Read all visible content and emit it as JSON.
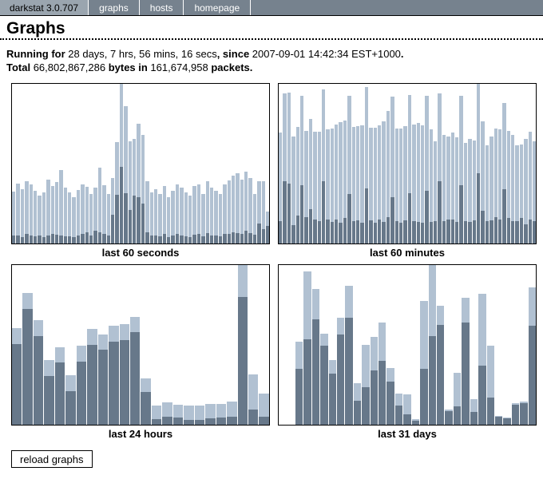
{
  "nav": {
    "brand": "darkstat 3.0.707",
    "items": [
      {
        "label": "graphs"
      },
      {
        "label": "hosts"
      },
      {
        "label": "homepage"
      }
    ]
  },
  "page": {
    "title": "Graphs"
  },
  "info": {
    "line1": [
      {
        "text": "Running for",
        "bold": true
      },
      {
        "text": " 28 days, 7 hrs, 56 mins, 16 secs",
        "bold": false
      },
      {
        "text": ", since",
        "bold": true
      },
      {
        "text": " 2007-09-01 14:42:34 EST+1000",
        "bold": false
      },
      {
        "text": ".",
        "bold": true
      }
    ],
    "line2": [
      {
        "text": "Total",
        "bold": true
      },
      {
        "text": " 66,802,867,286 ",
        "bold": false
      },
      {
        "text": "bytes in",
        "bold": true
      },
      {
        "text": " 161,674,958 ",
        "bold": false
      },
      {
        "text": "packets.",
        "bold": true
      }
    ]
  },
  "colors": {
    "page_bg": "#ffffff",
    "nav_bg": "#76828e",
    "nav_brand_bg": "#9aa5af",
    "nav_text": "#ffffff",
    "bar_light": "#b1c1d2",
    "bar_dark": "#67788a",
    "border": "#000000"
  },
  "footer": {
    "reload_button": "reload graphs"
  },
  "chart_data": [
    {
      "type": "bar",
      "title": "last 60 seconds",
      "stacked": true,
      "xlabel": "",
      "ylabel": "",
      "ylim": [
        0,
        200
      ],
      "grid": false,
      "legend": "none",
      "note": "values are stacked bar heights in plot pixels (plot height = 200); 'total' = full bar (light+dark), 'dark' = bottom dark segment",
      "series": [
        {
          "name": "total",
          "values": [
            65,
            75,
            68,
            78,
            74,
            66,
            60,
            64,
            80,
            72,
            77,
            92,
            70,
            64,
            58,
            67,
            74,
            71,
            62,
            70,
            95,
            73,
            62,
            82,
            127,
            200,
            172,
            128,
            131,
            150,
            136,
            78,
            64,
            68,
            62,
            72,
            58,
            66,
            74,
            70,
            64,
            60,
            72,
            74,
            62,
            78,
            70,
            66,
            62,
            74,
            79,
            85,
            88,
            80,
            90,
            82,
            62,
            78,
            78,
            40
          ]
        },
        {
          "name": "dark",
          "values": [
            10,
            10,
            8,
            12,
            10,
            9,
            10,
            8,
            10,
            12,
            11,
            10,
            9,
            9,
            8,
            10,
            12,
            14,
            10,
            16,
            14,
            12,
            10,
            36,
            61,
            96,
            63,
            42,
            60,
            58,
            50,
            14,
            10,
            10,
            9,
            12,
            8,
            10,
            12,
            10,
            9,
            8,
            11,
            12,
            9,
            13,
            10,
            10,
            9,
            12,
            12,
            14,
            13,
            12,
            16,
            13,
            11,
            25,
            18,
            22
          ]
        }
      ]
    },
    {
      "type": "bar",
      "title": "last 60 minutes",
      "stacked": true,
      "xlabel": "",
      "ylabel": "",
      "ylim": [
        0,
        200
      ],
      "grid": false,
      "legend": "none",
      "series": [
        {
          "name": "total",
          "values": [
            139,
            188,
            189,
            134,
            146,
            185,
            141,
            156,
            140,
            140,
            193,
            143,
            144,
            149,
            152,
            154,
            185,
            146,
            147,
            148,
            196,
            145,
            145,
            148,
            153,
            166,
            184,
            144,
            144,
            147,
            186,
            149,
            151,
            148,
            185,
            143,
            128,
            188,
            136,
            134,
            139,
            133,
            185,
            126,
            131,
            129,
            200,
            153,
            123,
            134,
            144,
            143,
            176,
            141,
            136,
            123,
            124,
            131,
            140,
            128
          ]
        },
        {
          "name": "dark",
          "values": [
            28,
            78,
            75,
            23,
            35,
            73,
            33,
            43,
            30,
            28,
            78,
            30,
            27,
            30,
            26,
            32,
            62,
            28,
            29,
            26,
            69,
            29,
            26,
            30,
            27,
            33,
            58,
            28,
            26,
            29,
            63,
            28,
            27,
            26,
            66,
            27,
            28,
            78,
            28,
            30,
            30,
            27,
            73,
            28,
            27,
            29,
            88,
            41,
            28,
            29,
            33,
            30,
            68,
            32,
            28,
            28,
            32,
            24,
            30,
            28
          ]
        }
      ]
    },
    {
      "type": "bar",
      "title": "last 24 hours",
      "stacked": true,
      "xlabel": "",
      "ylabel": "",
      "ylim": [
        0,
        200
      ],
      "grid": false,
      "legend": "none",
      "series": [
        {
          "name": "total",
          "values": [
            121,
            165,
            131,
            81,
            97,
            62,
            99,
            120,
            113,
            124,
            126,
            135,
            58,
            24,
            28,
            25,
            24,
            24,
            26,
            26,
            29,
            200,
            63,
            39
          ]
        },
        {
          "name": "dark",
          "values": [
            101,
            145,
            111,
            61,
            78,
            42,
            79,
            100,
            94,
            104,
            106,
            116,
            41,
            7,
            10,
            9,
            6,
            6,
            8,
            9,
            10,
            160,
            19,
            10
          ]
        }
      ]
    },
    {
      "type": "bar",
      "title": "last 31 days",
      "stacked": true,
      "xlabel": "",
      "ylabel": "",
      "ylim": [
        0,
        200
      ],
      "grid": false,
      "legend": "none",
      "series": [
        {
          "name": "total",
          "values": [
            0,
            0,
            104,
            192,
            170,
            114,
            81,
            134,
            174,
            52,
            100,
            110,
            128,
            71,
            39,
            38,
            7,
            155,
            200,
            149,
            19,
            65,
            159,
            32,
            164,
            99,
            11,
            9,
            27,
            29,
            172
          ]
        },
        {
          "name": "dark",
          "values": [
            0,
            0,
            70,
            107,
            132,
            99,
            64,
            113,
            134,
            30,
            47,
            68,
            80,
            54,
            24,
            13,
            5,
            70,
            111,
            125,
            17,
            23,
            128,
            16,
            74,
            34,
            10,
            8,
            25,
            27,
            124
          ]
        }
      ]
    }
  ]
}
